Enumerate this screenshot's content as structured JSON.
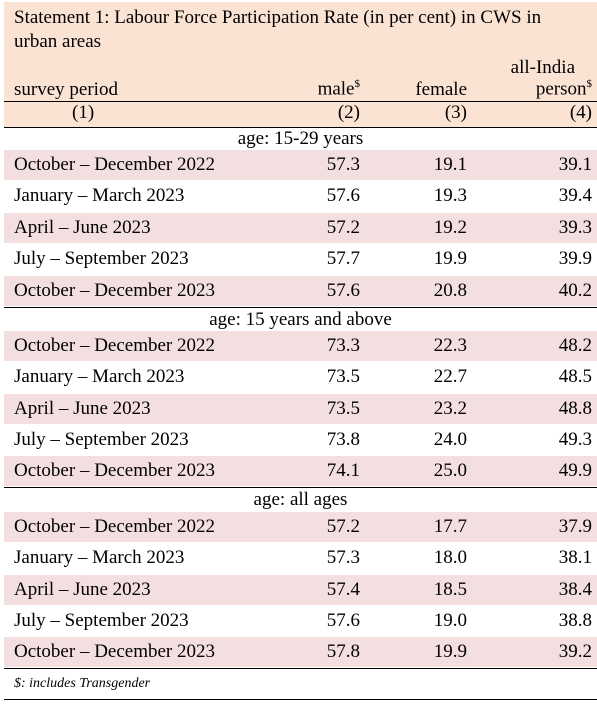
{
  "title": "Statement 1: Labour Force Participation Rate (in per cent) in CWS in urban areas",
  "header": {
    "all_india": "all-India",
    "survey_period": "survey period",
    "male": "male",
    "female": "female",
    "person": "person",
    "sup": "$",
    "col_nums": [
      "(1)",
      "(2)",
      "(3)",
      "(4)"
    ]
  },
  "groups": [
    {
      "label": "age: 15-29 years",
      "rows": [
        {
          "period": "October – December 2022",
          "male": "57.3",
          "female": "19.1",
          "person": "39.1"
        },
        {
          "period": "January – March 2023",
          "male": "57.6",
          "female": "19.3",
          "person": "39.4"
        },
        {
          "period": "April – June 2023",
          "male": "57.2",
          "female": "19.2",
          "person": "39.3"
        },
        {
          "period": "July – September 2023",
          "male": "57.7",
          "female": "19.9",
          "person": "39.9"
        },
        {
          "period": "October – December 2023",
          "male": "57.6",
          "female": "20.8",
          "person": "40.2"
        }
      ]
    },
    {
      "label": "age: 15 years and above",
      "rows": [
        {
          "period": "October – December 2022",
          "male": "73.3",
          "female": "22.3",
          "person": "48.2"
        },
        {
          "period": "January – March 2023",
          "male": "73.5",
          "female": "22.7",
          "person": "48.5"
        },
        {
          "period": "April – June 2023",
          "male": "73.5",
          "female": "23.2",
          "person": "48.8"
        },
        {
          "period": "July – September 2023",
          "male": "73.8",
          "female": "24.0",
          "person": "49.3"
        },
        {
          "period": "October – December 2023",
          "male": "74.1",
          "female": "25.0",
          "person": "49.9"
        }
      ]
    },
    {
      "label": "age: all ages",
      "rows": [
        {
          "period": "October – December 2022",
          "male": "57.2",
          "female": "17.7",
          "person": "37.9"
        },
        {
          "period": "January – March 2023",
          "male": "57.3",
          "female": "18.0",
          "person": "38.1"
        },
        {
          "period": "April – June 2023",
          "male": "57.4",
          "female": "18.5",
          "person": "38.4"
        },
        {
          "period": "July – September 2023",
          "male": "57.6",
          "female": "19.0",
          "person": "38.8"
        },
        {
          "period": "October – December 2023",
          "male": "57.8",
          "female": "19.9",
          "person": "39.2"
        }
      ]
    }
  ],
  "footnote": "$: includes Transgender"
}
